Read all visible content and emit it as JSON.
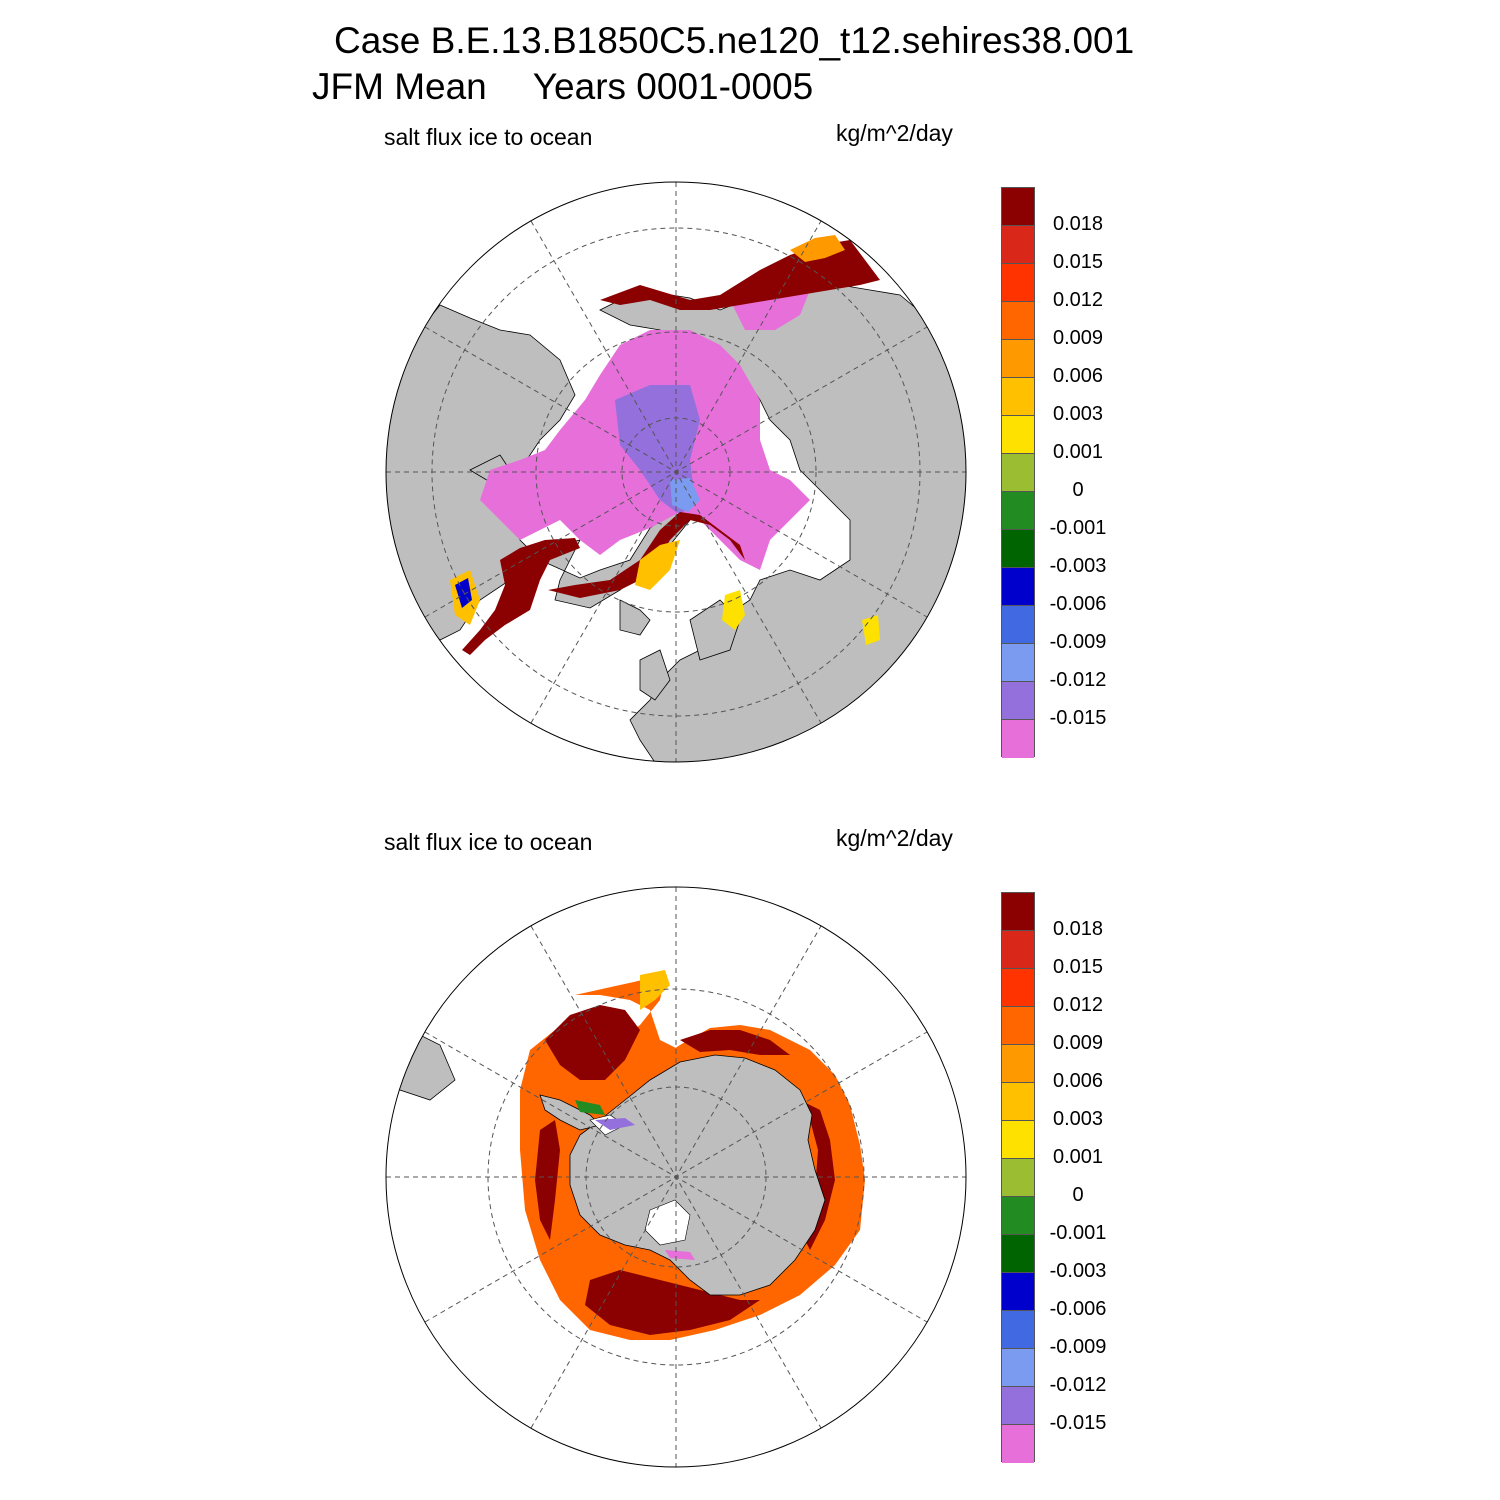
{
  "title": {
    "line1": "Case B.E.13.B1850C5.ne120_t12.sehires38.001",
    "season": "JFM Mean",
    "years": "Years 0001-0005"
  },
  "panels": [
    {
      "hemisphere": "north",
      "label": "salt flux ice to ocean",
      "units": "kg/m^2/day"
    },
    {
      "hemisphere": "south",
      "label": "salt flux ice to ocean",
      "units": "kg/m^2/day"
    }
  ],
  "colorbar": {
    "colors": [
      "#8b0000",
      "#d9281a",
      "#ff3300",
      "#ff6600",
      "#ff9900",
      "#ffc000",
      "#ffe100",
      "#9abd32",
      "#228b22",
      "#006400",
      "#0000cd",
      "#4169e1",
      "#7b9bf0",
      "#9370db",
      "#e66fda"
    ],
    "tick_labels": [
      "0.018",
      "0.015",
      "0.012",
      "0.009",
      "0.006",
      "0.003",
      "0.001",
      "0",
      "-0.001",
      "-0.003",
      "-0.006",
      "-0.009",
      "-0.012",
      "-0.015"
    ]
  },
  "map_colors": {
    "land": "#bebebe",
    "ocean": "#ffffff"
  }
}
